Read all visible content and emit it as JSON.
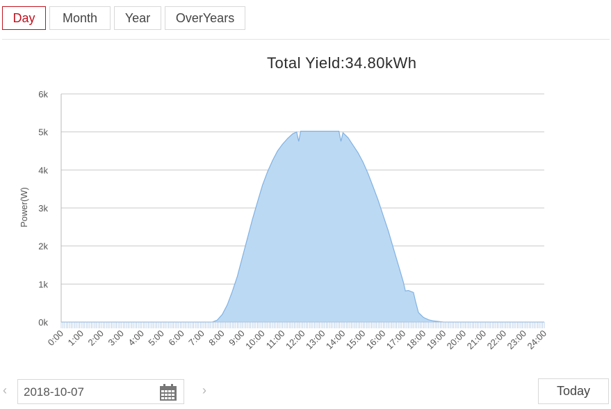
{
  "tabs": [
    {
      "label": "Day",
      "active": true
    },
    {
      "label": "Month",
      "active": false
    },
    {
      "label": "Year",
      "active": false
    },
    {
      "label": "OverYears",
      "active": false
    }
  ],
  "chart_data": {
    "type": "area",
    "title": "Total Yield:34.80kWh",
    "ylabel": "Power(W)",
    "xlabel": "",
    "ylim": [
      0,
      6000
    ],
    "xlim": [
      0,
      24
    ],
    "yticks": [
      0,
      1000,
      2000,
      3000,
      4000,
      5000,
      6000
    ],
    "ytick_labels": [
      "0k",
      "1k",
      "2k",
      "3k",
      "4k",
      "5k",
      "6k"
    ],
    "xtick_labels": [
      "0:00",
      "1:00",
      "2:00",
      "3:00",
      "4:00",
      "5:00",
      "6:00",
      "7:00",
      "8:00",
      "9:00",
      "10:00",
      "11:00",
      "12:00",
      "13:00",
      "14:00",
      "15:00",
      "16:00",
      "17:00",
      "18:00",
      "19:00",
      "20:00",
      "21:00",
      "22:00",
      "23:00",
      "24:00"
    ],
    "grid": true,
    "fill_color": "#bcd9f3",
    "line_color": "#7fb1e3",
    "series": [
      {
        "x": [
          0,
          7.0,
          7.5,
          7.75,
          8.0,
          8.25,
          8.5,
          8.75,
          9.0,
          9.25,
          9.5,
          9.75,
          10.0,
          10.25,
          10.5,
          10.75,
          11.0,
          11.25,
          11.5,
          11.7,
          11.8,
          11.9,
          12.0,
          12.5,
          13.0,
          13.5,
          13.8,
          13.9,
          14.0,
          14.25,
          14.5,
          14.75,
          15.0,
          15.25,
          15.5,
          15.75,
          16.0,
          16.25,
          16.5,
          16.75,
          17.0,
          17.1,
          17.25,
          17.5,
          17.6,
          17.75,
          18.0,
          18.25,
          18.5,
          19.0,
          19.5,
          24.0
        ],
        "y": [
          0,
          0,
          0,
          50,
          200,
          450,
          800,
          1200,
          1700,
          2200,
          2700,
          3150,
          3600,
          3950,
          4250,
          4500,
          4680,
          4830,
          4950,
          5000,
          4750,
          5020,
          5020,
          5020,
          5020,
          5020,
          5020,
          4750,
          4980,
          4850,
          4650,
          4450,
          4200,
          3900,
          3550,
          3200,
          2800,
          2400,
          1950,
          1500,
          1050,
          820,
          830,
          780,
          550,
          250,
          120,
          60,
          30,
          0,
          0,
          0
        ]
      }
    ]
  },
  "bottom": {
    "prev": "‹",
    "date": "2018-10-07",
    "next": "›",
    "today": "Today"
  }
}
